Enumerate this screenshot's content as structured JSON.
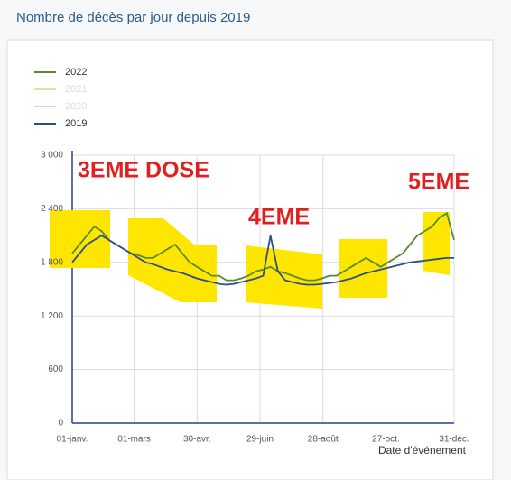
{
  "chart_data": {
    "type": "line",
    "title": "Nombre de décès par jour depuis 2019",
    "x_label": "Date d'événement",
    "x": [
      0,
      7,
      14,
      21,
      28,
      35,
      42,
      49,
      56,
      63,
      70,
      77,
      84,
      91,
      98,
      105,
      112,
      119,
      126,
      133,
      140,
      147,
      154,
      161,
      168,
      175,
      182,
      189,
      196,
      203,
      210,
      217,
      224,
      231,
      238,
      245,
      252,
      259,
      266,
      273,
      280,
      287,
      294,
      301,
      308,
      315,
      322,
      329,
      336,
      343,
      350,
      357,
      364
    ],
    "xlim": [
      0,
      364
    ],
    "xticks": [
      {
        "value": 0,
        "label": "01-janv."
      },
      {
        "value": 59,
        "label": "01-mars"
      },
      {
        "value": 119,
        "label": "30-avr."
      },
      {
        "value": 179,
        "label": "29-juin"
      },
      {
        "value": 239,
        "label": "28-août"
      },
      {
        "value": 299,
        "label": "27-oct."
      },
      {
        "value": 364,
        "label": "31-déc."
      }
    ],
    "ylim": [
      0,
      3000
    ],
    "yticks": [
      0,
      600,
      {
        "value": 1200,
        "label": "1 200"
      },
      {
        "value": 1800,
        "label": "1 800"
      },
      {
        "value": 2400,
        "label": "2 400"
      },
      {
        "value": 3000,
        "label": "3 000"
      }
    ],
    "grid": true,
    "series": [
      {
        "name": "2022",
        "color": "#5b8a2a",
        "values": [
          1900,
          2000,
          2100,
          2200,
          2150,
          2050,
          2000,
          1950,
          1900,
          1880,
          1850,
          1850,
          1900,
          1950,
          2000,
          1900,
          1800,
          1750,
          1700,
          1650,
          1650,
          1600,
          1600,
          1620,
          1650,
          1700,
          1720,
          1750,
          1700,
          1680,
          1650,
          1620,
          1600,
          1600,
          1620,
          1650,
          1650,
          1700,
          1750,
          1800,
          1850,
          1800,
          1750,
          1800,
          1850,
          1900,
          2000,
          2100,
          2150,
          2200,
          2300,
          2350,
          2050
        ]
      },
      {
        "name": "2021",
        "color": "#d9e8a0",
        "hidden": true
      },
      {
        "name": "2020",
        "color": "#f3c6d6",
        "hidden": true
      },
      {
        "name": "2019",
        "color": "#2d4f8a",
        "values": [
          1800,
          1900,
          2000,
          2050,
          2100,
          2050,
          2000,
          1950,
          1900,
          1850,
          1800,
          1780,
          1750,
          1720,
          1700,
          1680,
          1650,
          1620,
          1600,
          1580,
          1560,
          1550,
          1560,
          1580,
          1600,
          1620,
          1650,
          2100,
          1700,
          1600,
          1580,
          1560,
          1550,
          1550,
          1560,
          1570,
          1580,
          1600,
          1620,
          1650,
          1680,
          1700,
          1720,
          1740,
          1760,
          1780,
          1800,
          1810,
          1820,
          1830,
          1840,
          1850,
          1850
        ]
      }
    ],
    "annotations": [
      "3EME DOSE",
      "4EME",
      "5EME"
    ]
  }
}
